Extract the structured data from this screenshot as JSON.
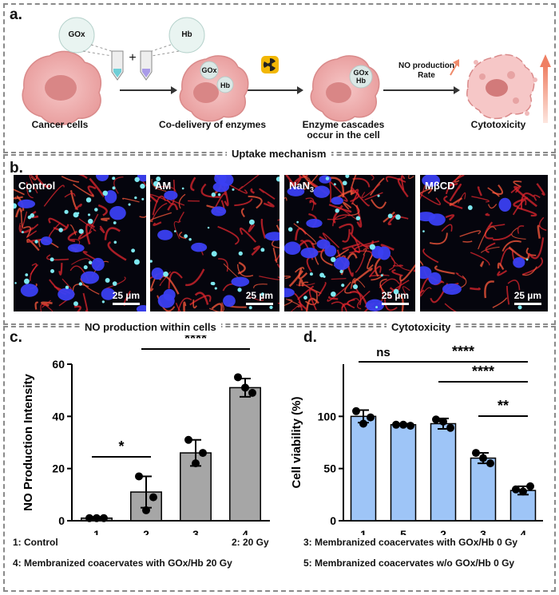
{
  "panel_a": {
    "label": "a.",
    "gox_label": "GOx",
    "hb_label": "Hb",
    "plus": "+",
    "caption_cancer": "Cancer cells",
    "caption_codelivery": "Co-delivery of enzymes",
    "caption_cascade_l1": "Enzyme cascades",
    "caption_cascade_l2": "occur in the cell",
    "caption_cytotox": "Cytotoxicity",
    "no_rate_l1": "NO production",
    "no_rate_l2": "Rate",
    "cell_gox": "GOx",
    "cell_hb": "Hb",
    "cell3_gox": "GOx",
    "cell3_hb": "Hb"
  },
  "section_uptake": "Uptake mechanism",
  "panel_b": {
    "label": "b.",
    "images": [
      {
        "name": "Control",
        "scale": "25 µm"
      },
      {
        "name": "AM",
        "scale": "25 µm"
      },
      {
        "name": "NaN",
        "sub": "3",
        "scale": "25 µm"
      },
      {
        "name": "MβCD",
        "scale": "25 µm"
      }
    ]
  },
  "section_no": "NO production within cells",
  "section_cyto": "Cytotoxicity",
  "panel_c": {
    "label": "c."
  },
  "panel_d": {
    "label": "d."
  },
  "legend": {
    "item1": "1: Control",
    "item2": "2: 20 Gy",
    "item3": "3: Membranized coacervates with GOx/Hb 0 Gy",
    "item4": "4: Membranized coacervates with GOx/Hb 20 Gy",
    "item5": "5: Membranized coacervates w/o GOx/Hb 0 Gy"
  },
  "chart_data": [
    {
      "type": "bar",
      "categories": [
        "1",
        "2",
        "3",
        "4"
      ],
      "values": [
        1,
        11,
        26,
        51
      ],
      "errors": [
        0.5,
        6,
        5,
        3.5
      ],
      "points": [
        [
          1,
          1,
          1
        ],
        [
          17,
          9,
          4
        ],
        [
          31,
          26,
          22
        ],
        [
          55,
          49,
          51
        ]
      ],
      "ylabel": "NO Production Intensity",
      "ylim": [
        0,
        60
      ],
      "yticks": [
        0,
        20,
        40,
        60
      ],
      "bar_color": "#a6a6a6",
      "significance": [
        {
          "from": "1",
          "to": "2",
          "label": "*"
        },
        {
          "from": "2",
          "to": "4",
          "label": "****"
        }
      ]
    },
    {
      "type": "bar",
      "categories": [
        "1",
        "5",
        "2",
        "3",
        "4"
      ],
      "values": [
        100,
        92,
        93,
        60,
        29
      ],
      "errors": [
        6,
        1,
        5,
        5,
        4
      ],
      "points": [
        [
          105,
          99,
          93
        ],
        [
          92,
          91,
          92
        ],
        [
          97,
          89,
          95
        ],
        [
          65,
          55,
          60
        ],
        [
          30,
          33,
          28
        ]
      ],
      "ylabel": "Cell viability (%)",
      "ylim": [
        0,
        150
      ],
      "yticks": [
        0,
        50,
        100
      ],
      "bar_color": "#9ec5f7",
      "significance": [
        {
          "from": "1",
          "to": "5",
          "label": "ns"
        },
        {
          "from": "5",
          "to": "4",
          "label": "****"
        },
        {
          "from": "2",
          "to": "4",
          "label": "****"
        },
        {
          "from": "3",
          "to": "4",
          "label": "**"
        }
      ]
    }
  ]
}
